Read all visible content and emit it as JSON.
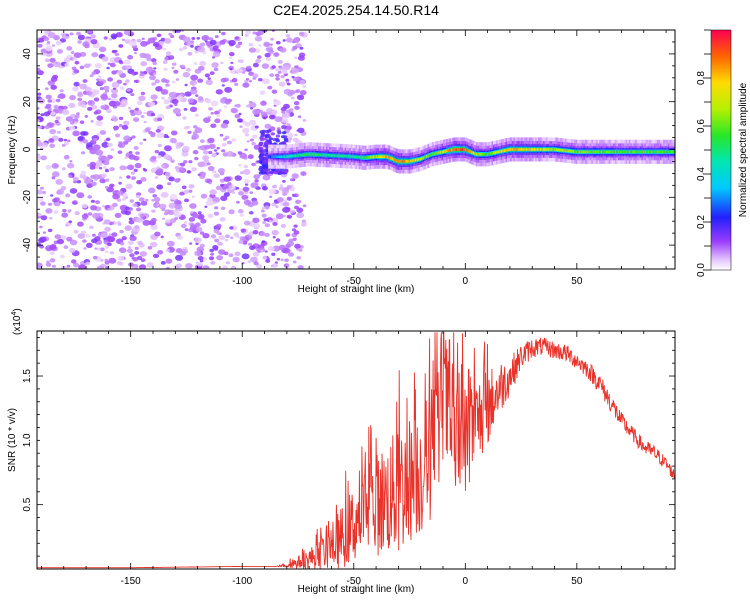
{
  "title": "C2E4.2025.254.14.50.R14",
  "chart_data": [
    {
      "type": "heatmap",
      "title": "C2E4.2025.254.14.50.R14",
      "xlabel": "Height of straight line (km)",
      "ylabel": "Frequency (Hz)",
      "xlim": [
        -192,
        94
      ],
      "ylim": [
        -50,
        50
      ],
      "x_ticks": [
        -150,
        -100,
        -50,
        0,
        50
      ],
      "y_ticks": [
        -40,
        -20,
        0,
        20,
        40
      ],
      "noise_region_x": [
        -192,
        -80
      ],
      "ridge": {
        "x": [
          -88,
          -80,
          -70,
          -60,
          -50,
          -45,
          -40,
          -35,
          -30,
          -25,
          -20,
          -15,
          -10,
          -5,
          0,
          5,
          10,
          15,
          20,
          30,
          40,
          50,
          60,
          70,
          80,
          90,
          94
        ],
        "freq": [
          -3,
          -3,
          -2,
          -2.5,
          -3,
          -3.5,
          -3,
          -3,
          -5,
          -5,
          -4,
          -2,
          -1,
          0,
          0,
          -2,
          -2,
          -1,
          0,
          0,
          0,
          -1,
          -1,
          -1,
          -1,
          -1,
          -1
        ],
        "amplitude": [
          0.25,
          0.45,
          0.55,
          0.5,
          0.5,
          0.55,
          0.75,
          0.85,
          0.9,
          0.85,
          0.7,
          0.6,
          0.75,
          0.95,
          0.95,
          0.7,
          0.6,
          0.75,
          0.85,
          0.8,
          0.7,
          0.65,
          0.62,
          0.6,
          0.6,
          0.62,
          0.6
        ]
      },
      "colorbar": {
        "label": "Normalized spectral amplitude",
        "range": [
          0,
          1
        ],
        "ticks": [
          "0.0",
          "0.2",
          "0.4",
          "0.6",
          "0.8"
        ]
      }
    },
    {
      "type": "line",
      "xlabel": "Height of straight line (km)",
      "ylabel": "SNR (10 * v/v)",
      "y_multiplier": "(x10",
      "y_multiplier_exp": "4",
      "xlim": [
        -192,
        94
      ],
      "ylim": [
        0,
        1.85
      ],
      "x_ticks": [
        -150,
        -100,
        -50,
        0,
        50
      ],
      "y_ticks": [
        "0.5",
        "1.0",
        "1.5"
      ],
      "series": [
        {
          "name": "SNR",
          "color": "#e8322a",
          "x": [
            -192,
            -150,
            -100,
            -85,
            -80,
            -75,
            -70,
            -65,
            -60,
            -55,
            -50,
            -45,
            -40,
            -35,
            -30,
            -25,
            -20,
            -15,
            -12,
            -10,
            -5,
            0,
            5,
            10,
            15,
            20,
            25,
            30,
            35,
            40,
            45,
            50,
            55,
            60,
            65,
            70,
            75,
            80,
            85,
            90,
            94
          ],
          "y": [
            0.01,
            0.01,
            0.02,
            0.02,
            0.03,
            0.05,
            0.08,
            0.12,
            0.18,
            0.25,
            0.35,
            0.45,
            0.5,
            0.55,
            0.6,
            0.7,
            0.75,
            0.9,
            1.1,
            1.4,
            0.95,
            1.0,
            1.15,
            1.25,
            1.4,
            1.5,
            1.65,
            1.72,
            1.73,
            1.7,
            1.68,
            1.62,
            1.55,
            1.45,
            1.3,
            1.15,
            1.05,
            0.95,
            0.9,
            0.82,
            0.72
          ],
          "jitter": [
            0,
            0,
            0,
            0,
            0.02,
            0.05,
            0.08,
            0.12,
            0.18,
            0.25,
            0.3,
            0.35,
            0.4,
            0.45,
            0.5,
            0.5,
            0.5,
            0.55,
            0.6,
            0.55,
            0.5,
            0.45,
            0.35,
            0.3,
            0.22,
            0.15,
            0.1,
            0.08,
            0.07,
            0.07,
            0.07,
            0.07,
            0.07,
            0.08,
            0.08,
            0.07,
            0.06,
            0.06,
            0.06,
            0.05,
            0.05
          ]
        }
      ]
    }
  ]
}
